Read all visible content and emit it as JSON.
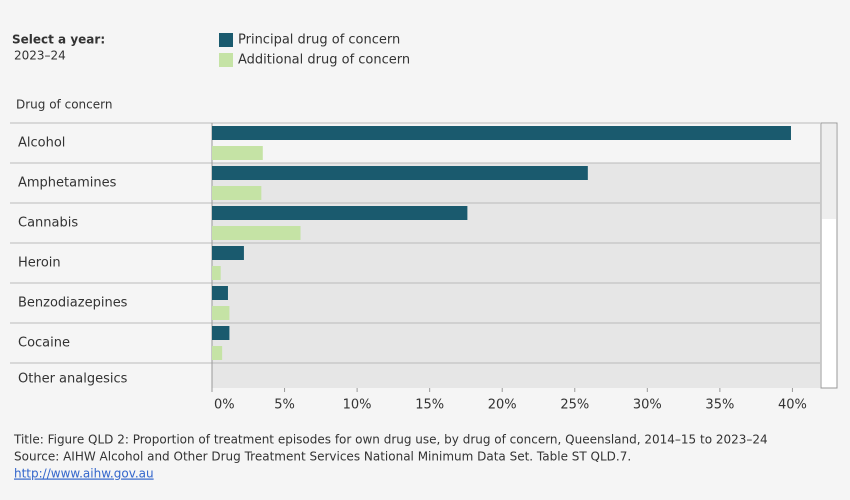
{
  "filter": {
    "label": "Select a year:",
    "value": "2023–24"
  },
  "chart_data": {
    "type": "hbar",
    "y_label": "Drug of concern",
    "categories": [
      "Alcohol",
      "Amphetamines",
      "Cannabis",
      "Heroin",
      "Benzodiazepines",
      "Cocaine",
      "Other analgesics"
    ],
    "series": [
      {
        "name": "Principal drug of concern",
        "color": "#1a5a6e",
        "values": [
          39.9,
          25.9,
          17.6,
          2.2,
          1.1,
          1.2,
          null
        ]
      },
      {
        "name": "Additional drug of concern",
        "color": "#c5e3a5",
        "values": [
          3.5,
          3.4,
          6.1,
          0.6,
          1.2,
          0.7,
          null
        ]
      }
    ],
    "xlim": [
      0,
      41.9
    ],
    "xticks": [
      {
        "value": 0,
        "label": "0%"
      },
      {
        "value": 5,
        "label": "5%"
      },
      {
        "value": 10,
        "label": "10%"
      },
      {
        "value": 15,
        "label": "15%"
      },
      {
        "value": 20,
        "label": "20%"
      },
      {
        "value": 25,
        "label": "25%"
      },
      {
        "value": 30,
        "label": "30%"
      },
      {
        "value": 35,
        "label": "35%"
      },
      {
        "value": 40,
        "label": "40%"
      }
    ]
  },
  "footer": {
    "title": "Title: Figure QLD 2: Proportion of treatment episodes for own drug use, by drug of concern, Queensland, 2014–15 to 2023–24",
    "source": "Source: AIHW Alcohol and Other Drug Treatment Services National Minimum Data Set. Table ST QLD.7.",
    "link": "http://www.aihw.gov.au"
  }
}
